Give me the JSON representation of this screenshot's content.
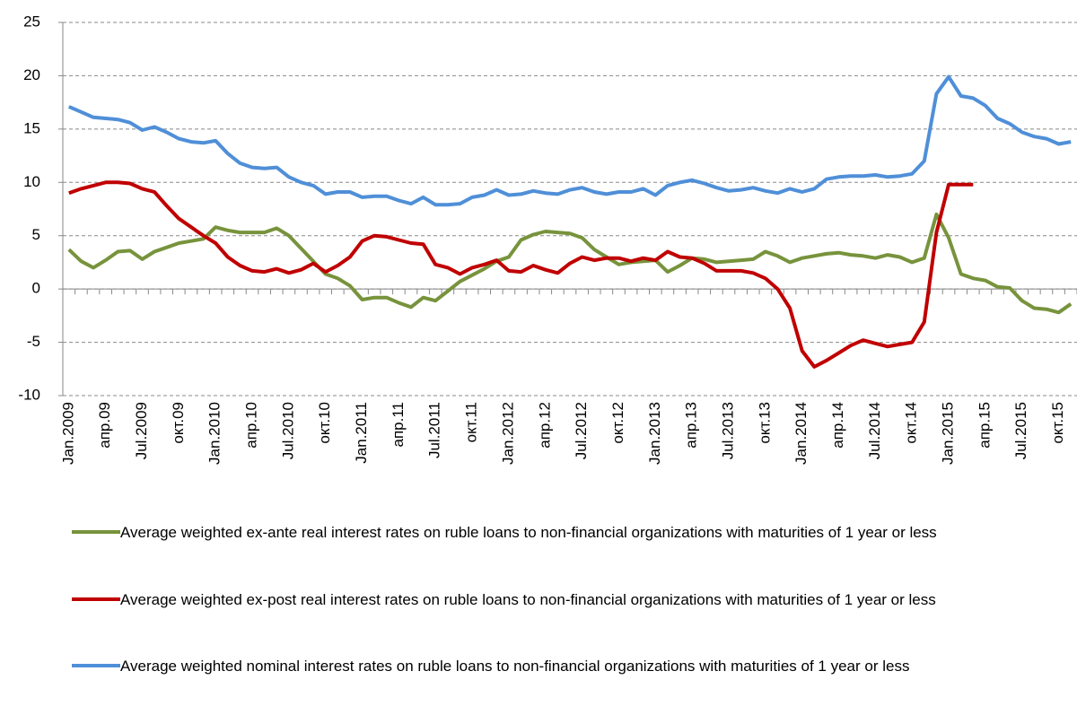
{
  "chart_data": {
    "type": "line",
    "categories": [
      "Jan.2009",
      null,
      null,
      "апр.09",
      null,
      null,
      "Jul.2009",
      null,
      null,
      "окт.09",
      null,
      null,
      "Jan.2010",
      null,
      null,
      "апр.10",
      null,
      null,
      "Jul.2010",
      null,
      null,
      "окт.10",
      null,
      null,
      "Jan.2011",
      null,
      null,
      "апр.11",
      null,
      null,
      "Jul.2011",
      null,
      null,
      "окт.11",
      null,
      null,
      "Jan.2012",
      null,
      null,
      "апр.12",
      null,
      null,
      "Jul.2012",
      null,
      null,
      "окт.12",
      null,
      null,
      "Jan.2013",
      null,
      null,
      "апр.13",
      null,
      null,
      "Jul.2013",
      null,
      null,
      "окт.13",
      null,
      null,
      "Jan.2014",
      null,
      null,
      "апр.14",
      null,
      null,
      "Jul.2014",
      null,
      null,
      "окт.14",
      null,
      null,
      "Jan.2015",
      null,
      null,
      "апр.15",
      null,
      null,
      "Jul.2015",
      null,
      null,
      "окт.15",
      null
    ],
    "series": [
      {
        "name": "Average weighted ex-ante real interest rates on ruble loans to non-financial organizations with maturities of 1 year or less",
        "color": "#77933c",
        "values": [
          3.7,
          2.6,
          2.0,
          2.7,
          3.5,
          3.6,
          2.8,
          3.5,
          3.9,
          4.3,
          4.5,
          4.7,
          5.8,
          5.5,
          5.3,
          5.3,
          5.3,
          5.7,
          5.0,
          3.8,
          2.6,
          1.4,
          1.0,
          0.3,
          -1.0,
          -0.8,
          -0.8,
          -1.3,
          -1.7,
          -0.8,
          -1.1,
          -0.2,
          0.7,
          1.3,
          1.9,
          2.6,
          3.0,
          4.6,
          5.1,
          5.4,
          5.3,
          5.2,
          4.8,
          3.7,
          3.0,
          2.3,
          2.5,
          2.6,
          2.7,
          1.6,
          2.2,
          2.9,
          2.8,
          2.5,
          2.6,
          2.7,
          2.8,
          3.5,
          3.1,
          2.5,
          2.9,
          3.1,
          3.3,
          3.4,
          3.2,
          3.1,
          2.9,
          3.2,
          3.0,
          2.5,
          2.9,
          7.0,
          4.8,
          1.4,
          1.0,
          0.8,
          0.2,
          0.1,
          -1.1,
          -1.8,
          -1.9,
          -2.2,
          -1.4
        ]
      },
      {
        "name": "Average weighted ex-post real interest rates on ruble loans to non-financial organizations with maturities of 1 year or less",
        "color": "#c00000",
        "values": [
          9.0,
          9.4,
          9.7,
          10.0,
          10.0,
          9.9,
          9.4,
          9.1,
          7.8,
          6.6,
          5.8,
          5.0,
          4.3,
          3.0,
          2.2,
          1.7,
          1.6,
          1.9,
          1.5,
          1.8,
          2.4,
          1.6,
          2.2,
          3.0,
          4.5,
          5.0,
          4.9,
          4.6,
          4.3,
          4.2,
          2.3,
          2.0,
          1.4,
          2.0,
          2.3,
          2.7,
          1.7,
          1.6,
          2.2,
          1.8,
          1.5,
          2.4,
          3.0,
          2.7,
          2.9,
          2.9,
          2.6,
          2.9,
          2.7,
          3.5,
          3.0,
          2.9,
          2.4,
          1.7,
          1.7,
          1.7,
          1.5,
          1.0,
          0.0,
          -1.8,
          -5.8,
          -7.3,
          -6.7,
          -6.0,
          -5.3,
          -4.8,
          -5.1,
          -5.4,
          -5.2,
          -5.0,
          -3.1,
          5.3,
          9.8,
          9.8,
          9.8,
          null,
          null,
          null,
          null,
          null,
          null,
          null,
          null
        ]
      },
      {
        "name": "Average weighted nominal interest rates on ruble loans to non-financial organizations with maturities of 1 year or less",
        "color": "#4f8fd8",
        "values": [
          17.1,
          16.6,
          16.1,
          16.0,
          15.9,
          15.6,
          14.9,
          15.2,
          14.7,
          14.1,
          13.8,
          13.7,
          13.9,
          12.7,
          11.8,
          11.4,
          11.3,
          11.4,
          10.5,
          10.0,
          9.7,
          8.9,
          9.1,
          9.1,
          8.6,
          8.7,
          8.7,
          8.3,
          8.0,
          8.6,
          7.9,
          7.9,
          8.0,
          8.6,
          8.8,
          9.3,
          8.8,
          8.9,
          9.2,
          9.0,
          8.9,
          9.3,
          9.5,
          9.1,
          8.9,
          9.1,
          9.1,
          9.4,
          8.8,
          9.7,
          10.0,
          10.2,
          9.9,
          9.5,
          9.2,
          9.3,
          9.5,
          9.2,
          9.0,
          9.4,
          9.1,
          9.4,
          10.3,
          10.5,
          10.6,
          10.6,
          10.7,
          10.5,
          10.6,
          10.8,
          12.0,
          18.3,
          19.9,
          18.1,
          17.9,
          17.2,
          16.0,
          15.5,
          14.7,
          14.3,
          14.1,
          13.6,
          13.8
        ]
      }
    ],
    "ylim": [
      -10,
      25
    ],
    "yticks": [
      -10,
      -5,
      0,
      5,
      10,
      15,
      20,
      25
    ],
    "grid": true
  }
}
